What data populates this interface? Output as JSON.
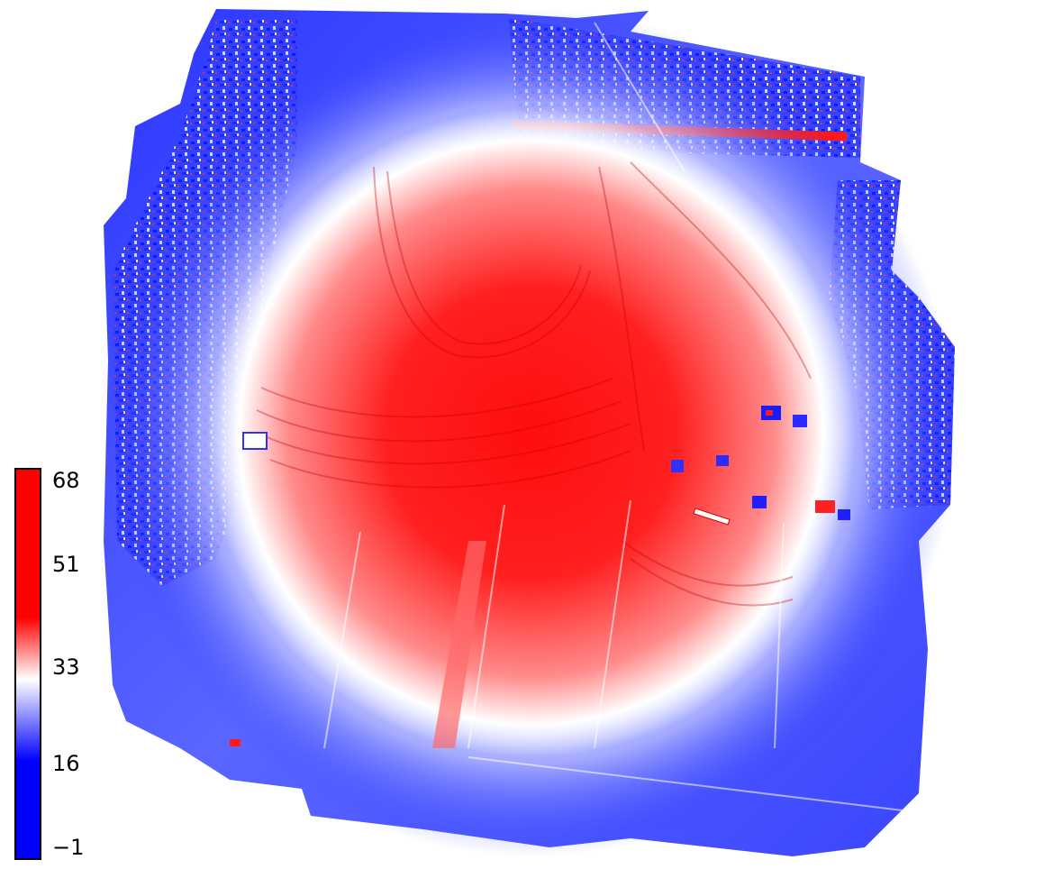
{
  "map": {
    "colorscale": {
      "low_color": "#0000ff",
      "mid_color": "#ffffff",
      "high_color": "#ff0000",
      "min": -1,
      "max": 68
    },
    "colorbar": {
      "ticks": [
        {
          "label": "68",
          "value": 68
        },
        {
          "label": "51",
          "value": 51
        },
        {
          "label": "33",
          "value": 33
        },
        {
          "label": "16",
          "value": 16
        },
        {
          "label": "−1",
          "value": -1
        }
      ]
    }
  }
}
